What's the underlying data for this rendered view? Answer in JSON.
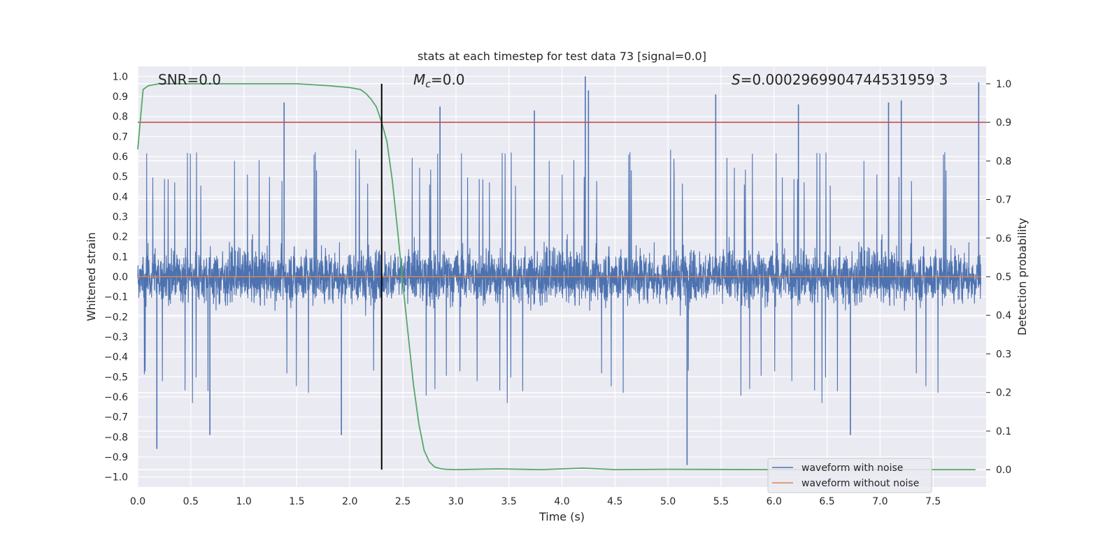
{
  "chart_data": {
    "type": "line",
    "title": "stats at each timestep for test data 73 [signal=0.0]",
    "xlabel": "Time (s)",
    "ylabel": "Whitened strain",
    "y2label": "Detection probability",
    "xlim": [
      0.0,
      8.0
    ],
    "ylim": [
      -1.05,
      1.05
    ],
    "y2lim": [
      -0.045,
      1.045
    ],
    "xticks": [
      "0.0",
      "0.5",
      "1.0",
      "1.5",
      "2.0",
      "2.5",
      "3.0",
      "3.5",
      "4.0",
      "4.5",
      "5.0",
      "5.5",
      "6.0",
      "6.5",
      "7.0",
      "7.5"
    ],
    "yticks": [
      "1.0",
      "0.9",
      "0.8",
      "0.7",
      "0.6",
      "0.5",
      "0.4",
      "0.3",
      "0.2",
      "0.1",
      "0.0",
      "−0.1",
      "−0.2",
      "−0.3",
      "−0.4",
      "−0.5",
      "−0.6",
      "−0.7",
      "−0.8",
      "−0.9",
      "−1.0"
    ],
    "y2ticks": [
      "1.0",
      "0.9",
      "0.8",
      "0.7",
      "0.6",
      "0.5",
      "0.4",
      "0.3",
      "0.2",
      "0.1",
      "0.0"
    ],
    "grid": true,
    "legend_position": "lower-right",
    "annotations": {
      "snr": "SNR=0.0",
      "mc_symbol": "M",
      "mc_sub": "c",
      "mc_value": "=0.0",
      "s_symbol": "S",
      "s_value": "=0.0002969904744531959 3"
    },
    "vertical_line_x": 2.3,
    "threshold_y2": 0.9,
    "series": [
      {
        "name": "waveform with noise",
        "color": "#4c72b0",
        "style": "noise",
        "x_range": [
          0.0,
          8.0
        ],
        "y_range_typical": [
          -0.35,
          0.3
        ],
        "peaks_x": [
          0.18,
          0.68,
          1.38,
          1.92,
          2.85,
          3.74,
          4.22,
          4.25,
          5.18,
          5.45,
          6.23,
          6.72,
          7.08,
          7.2,
          7.93
        ],
        "peaks_y": [
          -0.86,
          -0.79,
          0.87,
          -0.79,
          0.85,
          0.83,
          1.0,
          0.93,
          -0.94,
          0.91,
          0.86,
          -0.79,
          0.87,
          0.88,
          0.97
        ]
      },
      {
        "name": "waveform without noise",
        "color": "#dd8452",
        "x": [
          0.0,
          8.0
        ],
        "y": [
          0.0,
          0.0
        ]
      },
      {
        "name": "",
        "color": "#55a868",
        "axis": "y2",
        "x": [
          0.0,
          0.05,
          0.1,
          0.2,
          0.5,
          1.0,
          1.5,
          1.8,
          2.0,
          2.1,
          2.15,
          2.2,
          2.25,
          2.3,
          2.35,
          2.4,
          2.45,
          2.5,
          2.55,
          2.6,
          2.65,
          2.7,
          2.75,
          2.8,
          2.85,
          2.9,
          3.0,
          3.4,
          3.8,
          4.2,
          4.5,
          5.0,
          6.0,
          7.0,
          7.9
        ],
        "y": [
          0.83,
          0.985,
          0.995,
          1.0,
          1.0,
          1.0,
          1.0,
          0.995,
          0.99,
          0.985,
          0.975,
          0.96,
          0.94,
          0.9,
          0.85,
          0.75,
          0.62,
          0.48,
          0.35,
          0.22,
          0.12,
          0.05,
          0.02,
          0.007,
          0.003,
          0.001,
          0.0,
          0.002,
          0.0,
          0.004,
          0.0,
          0.001,
          0.0,
          0.0,
          0.0
        ]
      }
    ]
  }
}
